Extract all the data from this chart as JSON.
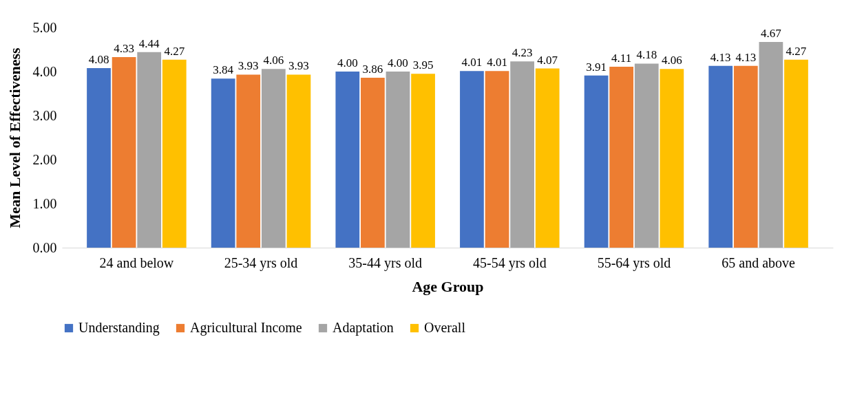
{
  "chart_data": {
    "type": "bar",
    "xlabel": "Age Group",
    "ylabel": "Mean Level of Effectiveness",
    "categories": [
      "24 and below",
      "25-34 yrs old",
      "35-44 yrs old",
      "45-54 yrs old",
      "55-64 yrs old",
      "65 and above"
    ],
    "series": [
      {
        "name": "Understanding",
        "color": "#4472c4",
        "values": [
          4.08,
          3.84,
          4.0,
          4.01,
          3.91,
          4.13
        ],
        "value_labels": [
          "4.08",
          "3.84",
          "4.00",
          "4.01",
          "3.91",
          "4.13"
        ]
      },
      {
        "name": "Agricultural Income",
        "color": "#ed7d31",
        "values": [
          4.33,
          3.93,
          3.86,
          4.01,
          4.11,
          4.13
        ],
        "value_labels": [
          "4.33",
          "3.93",
          "3.86",
          "4.01",
          "4.11",
          "4.13"
        ]
      },
      {
        "name": "Adaptation",
        "color": "#a5a5a5",
        "values": [
          4.44,
          4.06,
          4.0,
          4.23,
          4.18,
          4.67
        ],
        "value_labels": [
          "4.44",
          "4.06",
          "4.00",
          "4.23",
          "4.18",
          "4.67"
        ]
      },
      {
        "name": "Overall",
        "color": "#ffc000",
        "values": [
          4.27,
          3.93,
          3.95,
          4.07,
          4.06,
          4.27
        ],
        "value_labels": [
          "4.27",
          "3.93",
          "3.95",
          "4.07",
          "4.06",
          "4.27"
        ]
      }
    ],
    "ylim": [
      0,
      5
    ],
    "yticks": [
      {
        "value": 0,
        "label": "0.00"
      },
      {
        "value": 1,
        "label": "1.00"
      },
      {
        "value": 2,
        "label": "2.00"
      },
      {
        "value": 3,
        "label": "3.00"
      },
      {
        "value": 4,
        "label": "4.00"
      },
      {
        "value": 5,
        "label": "5.00"
      }
    ],
    "grid": false,
    "legend": "bottom"
  }
}
